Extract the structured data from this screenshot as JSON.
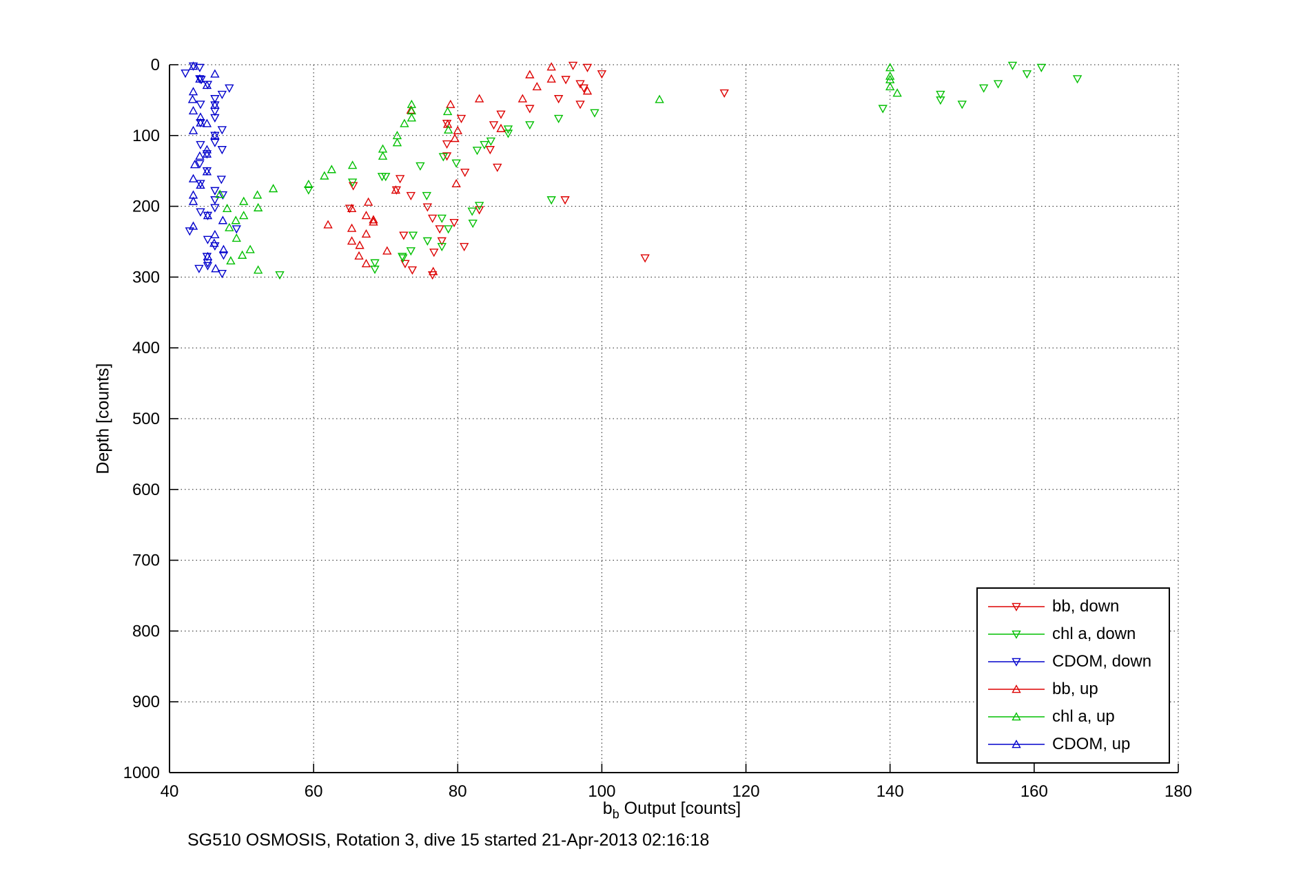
{
  "figure": {
    "annotation": "SG510 OSMOSIS, Rotation 3, dive 15 started 21-Apr-2013 02:16:18"
  },
  "chart_data": {
    "type": "scatter",
    "title": "",
    "xlabel": {
      "pre": "b",
      "sub": "b",
      "post": " Output [counts]"
    },
    "ylabel": "Depth [counts]",
    "xlim": [
      40,
      180
    ],
    "ylim": [
      0,
      1000
    ],
    "y_axis_reversed": true,
    "xticks": [
      40,
      60,
      80,
      100,
      120,
      140,
      160,
      180
    ],
    "yticks": [
      0,
      100,
      200,
      300,
      400,
      500,
      600,
      700,
      800,
      900,
      1000
    ],
    "grid": "dotted",
    "legend_position": "lower-right-inside",
    "series": [
      {
        "name": "bb, down",
        "color": "#dd0000",
        "marker": "triangle-down",
        "points": [
          [
            96,
            1
          ],
          [
            98,
            4
          ],
          [
            100,
            13
          ],
          [
            95,
            21
          ],
          [
            97,
            27
          ],
          [
            97.5,
            33
          ],
          [
            117,
            40
          ],
          [
            94,
            48
          ],
          [
            97,
            56
          ],
          [
            90,
            62
          ],
          [
            86,
            70
          ],
          [
            80.5,
            76
          ],
          [
            78.5,
            83
          ],
          [
            85,
            85
          ],
          [
            78.5,
            112
          ],
          [
            84.5,
            120
          ],
          [
            78.5,
            129
          ],
          [
            85.5,
            145
          ],
          [
            81,
            152
          ],
          [
            72,
            161
          ],
          [
            65.5,
            171
          ],
          [
            71.5,
            177
          ],
          [
            73.5,
            185
          ],
          [
            94.9,
            191
          ],
          [
            75.8,
            201
          ],
          [
            65,
            203
          ],
          [
            83,
            205
          ],
          [
            76.5,
            217
          ],
          [
            79.5,
            223
          ],
          [
            77.5,
            232
          ],
          [
            72.5,
            241
          ],
          [
            77.8,
            249
          ],
          [
            80.9,
            257
          ],
          [
            76.7,
            265
          ],
          [
            106,
            273
          ],
          [
            72.7,
            281
          ],
          [
            73.7,
            290
          ],
          [
            76.5,
            297
          ]
        ]
      },
      {
        "name": "chl a, down",
        "color": "#00bf00",
        "marker": "triangle-down",
        "points": [
          [
            157,
            1
          ],
          [
            161,
            4
          ],
          [
            159,
            13
          ],
          [
            166,
            20
          ],
          [
            155,
            27
          ],
          [
            153,
            33
          ],
          [
            147,
            42
          ],
          [
            147,
            50
          ],
          [
            150,
            56
          ],
          [
            139,
            62
          ],
          [
            99,
            68
          ],
          [
            94,
            76
          ],
          [
            90,
            85
          ],
          [
            87,
            91
          ],
          [
            87,
            97
          ],
          [
            84.6,
            108
          ],
          [
            83.7,
            113
          ],
          [
            82.7,
            121
          ],
          [
            78,
            130
          ],
          [
            79.8,
            139
          ],
          [
            74.8,
            143
          ],
          [
            70,
            158
          ],
          [
            69.5,
            158
          ],
          [
            65.4,
            166
          ],
          [
            59.3,
            177
          ],
          [
            75.7,
            185
          ],
          [
            93,
            191
          ],
          [
            83,
            199
          ],
          [
            82,
            207
          ],
          [
            77.8,
            217
          ],
          [
            82.1,
            224
          ],
          [
            78.7,
            232
          ],
          [
            73.8,
            241
          ],
          [
            75.8,
            249
          ],
          [
            77.8,
            257
          ],
          [
            73.5,
            263
          ],
          [
            72.3,
            271
          ],
          [
            72.4,
            273
          ],
          [
            68.5,
            280
          ],
          [
            68.5,
            289
          ],
          [
            55.3,
            297
          ]
        ]
      },
      {
        "name": "CDOM, down",
        "color": "#0000cc",
        "marker": "triangle-down",
        "points": [
          [
            43.3,
            2
          ],
          [
            44.2,
            4
          ],
          [
            42.2,
            12
          ],
          [
            44.2,
            20
          ],
          [
            44.4,
            21
          ],
          [
            45.3,
            28
          ],
          [
            48.3,
            33
          ],
          [
            47.3,
            42
          ],
          [
            46.3,
            48
          ],
          [
            44.3,
            56
          ],
          [
            46.3,
            57
          ],
          [
            46.3,
            66
          ],
          [
            46.3,
            75
          ],
          [
            44.3,
            82
          ],
          [
            47.3,
            92
          ],
          [
            46.3,
            100
          ],
          [
            46.3,
            110
          ],
          [
            44.3,
            113
          ],
          [
            47.3,
            120
          ],
          [
            45.2,
            126
          ],
          [
            44.2,
            140
          ],
          [
            45.2,
            150
          ],
          [
            47.2,
            162
          ],
          [
            44.3,
            168
          ],
          [
            46.3,
            178
          ],
          [
            47.4,
            184
          ],
          [
            46.3,
            191
          ],
          [
            46.3,
            202
          ],
          [
            44.3,
            208
          ],
          [
            45.3,
            213
          ],
          [
            49.3,
            232
          ],
          [
            42.8,
            235
          ],
          [
            45.3,
            247
          ],
          [
            46.3,
            256
          ],
          [
            47.5,
            269
          ],
          [
            45.2,
            271
          ],
          [
            45.3,
            280
          ],
          [
            45.3,
            284
          ],
          [
            44.1,
            288
          ],
          [
            47.3,
            295
          ]
        ]
      },
      {
        "name": "bb, up",
        "color": "#dd0000",
        "marker": "triangle-up",
        "points": [
          [
            93,
            3
          ],
          [
            90,
            14
          ],
          [
            93,
            20
          ],
          [
            91,
            31
          ],
          [
            98,
            37
          ],
          [
            89,
            48
          ],
          [
            83,
            48
          ],
          [
            79,
            56
          ],
          [
            73.5,
            64
          ],
          [
            78.6,
            84
          ],
          [
            86,
            90
          ],
          [
            80,
            93
          ],
          [
            79.6,
            104
          ],
          [
            79.8,
            168
          ],
          [
            71.4,
            177
          ],
          [
            67.6,
            194
          ],
          [
            65.3,
            203
          ],
          [
            67.3,
            213
          ],
          [
            68.3,
            219
          ],
          [
            68.3,
            222
          ],
          [
            62,
            226
          ],
          [
            65.3,
            231
          ],
          [
            67.3,
            239
          ],
          [
            65.3,
            249
          ],
          [
            66.4,
            255
          ],
          [
            70.2,
            263
          ],
          [
            66.3,
            270
          ],
          [
            67.3,
            281
          ],
          [
            76.6,
            292
          ]
        ]
      },
      {
        "name": "chl a, up",
        "color": "#00bf00",
        "marker": "triangle-up",
        "points": [
          [
            140,
            4
          ],
          [
            140,
            16
          ],
          [
            140,
            21
          ],
          [
            140,
            31
          ],
          [
            141,
            40
          ],
          [
            108,
            49
          ],
          [
            73.6,
            56
          ],
          [
            73.6,
            65
          ],
          [
            78.6,
            66
          ],
          [
            73.6,
            75
          ],
          [
            72.6,
            83
          ],
          [
            78.7,
            92
          ],
          [
            71.6,
            100
          ],
          [
            71.6,
            110
          ],
          [
            69.6,
            119
          ],
          [
            69.6,
            129
          ],
          [
            65.4,
            142
          ],
          [
            62.5,
            148
          ],
          [
            61.5,
            157
          ],
          [
            59.3,
            169
          ],
          [
            54.4,
            175
          ],
          [
            47,
            183
          ],
          [
            52.2,
            184
          ],
          [
            50.3,
            193
          ],
          [
            52.3,
            202
          ],
          [
            48,
            203
          ],
          [
            50.3,
            213
          ],
          [
            49.2,
            220
          ],
          [
            48.3,
            230
          ],
          [
            49.3,
            245
          ],
          [
            51.2,
            261
          ],
          [
            50.1,
            269
          ],
          [
            48.5,
            277
          ],
          [
            52.3,
            290
          ]
        ]
      },
      {
        "name": "CDOM, up",
        "color": "#0000cc",
        "marker": "triangle-up",
        "points": [
          [
            43.3,
            2
          ],
          [
            46.3,
            13
          ],
          [
            44.2,
            20
          ],
          [
            45.2,
            29
          ],
          [
            43.3,
            38
          ],
          [
            43.2,
            49
          ],
          [
            46.3,
            57
          ],
          [
            43.3,
            65
          ],
          [
            44.3,
            74
          ],
          [
            44.3,
            82
          ],
          [
            45.2,
            83
          ],
          [
            43.3,
            93
          ],
          [
            46.3,
            100
          ],
          [
            45.2,
            120
          ],
          [
            45.2,
            126
          ],
          [
            44.2,
            129
          ],
          [
            43.5,
            141
          ],
          [
            45.2,
            151
          ],
          [
            43.3,
            161
          ],
          [
            44.3,
            170
          ],
          [
            43.3,
            184
          ],
          [
            43.3,
            193
          ],
          [
            45.3,
            213
          ],
          [
            47.4,
            220
          ],
          [
            43.3,
            228
          ],
          [
            46.3,
            240
          ],
          [
            46.2,
            252
          ],
          [
            47.5,
            261
          ],
          [
            45.3,
            271
          ],
          [
            46.4,
            288
          ]
        ]
      }
    ],
    "annotation": "SG510 OSMOSIS, Rotation 3, dive 15 started 21-Apr-2013 02:16:18"
  }
}
